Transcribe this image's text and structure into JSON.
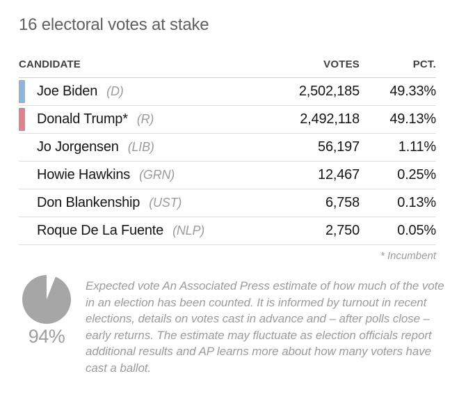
{
  "page": {
    "title": "16 electoral votes at stake"
  },
  "table": {
    "headers": {
      "candidate": "CANDIDATE",
      "votes": "VOTES",
      "pct": "PCT."
    },
    "rows": [
      {
        "name": "Joe Biden",
        "party": "(D)",
        "votes": "2,502,185",
        "pct": "49.33%",
        "marker": "dem"
      },
      {
        "name": "Donald Trump*",
        "party": "(R)",
        "votes": "2,492,118",
        "pct": "49.13%",
        "marker": "rep"
      },
      {
        "name": "Jo Jorgensen",
        "party": "(LIB)",
        "votes": "56,197",
        "pct": "1.11%",
        "marker": "none"
      },
      {
        "name": "Howie Hawkins",
        "party": "(GRN)",
        "votes": "12,467",
        "pct": "0.25%",
        "marker": "none"
      },
      {
        "name": "Don Blankenship",
        "party": "(UST)",
        "votes": "6,758",
        "pct": "0.13%",
        "marker": "none"
      },
      {
        "name": "Roque De La Fuente",
        "party": "(NLP)",
        "votes": "2,750",
        "pct": "0.05%",
        "marker": "none"
      }
    ],
    "footnote": "* Incumbent"
  },
  "expected_vote": {
    "percent": 94,
    "label": "94%",
    "description": "Expected vote An Associated Press estimate of how much of the vote in an election has been counted. It is informed by turnout in recent elections, details on votes cast in advance and – after polls close – early returns. The estimate may fluctuate as election officials report additional results and AP learns more about how many voters have cast a ballot."
  },
  "colors": {
    "dem_marker": "#8FB4D5",
    "rep_marker": "#DB8490",
    "pie_gray": "#A6A6A6",
    "pie_remaining": "#FFFFFF",
    "muted_text": "#9B9B9B",
    "divider": "#DEDEDE",
    "title_text": "#5F5F5F",
    "header_text": "#404040",
    "body_text": "#141414"
  },
  "chart_data": [
    {
      "type": "table",
      "title": "16 electoral votes at stake",
      "columns": [
        "CANDIDATE",
        "VOTES",
        "PCT."
      ],
      "rows": [
        {
          "candidate": "Joe Biden",
          "party": "D",
          "incumbent": false,
          "votes": 2502185,
          "pct": 49.33
        },
        {
          "candidate": "Donald Trump",
          "party": "R",
          "incumbent": true,
          "votes": 2492118,
          "pct": 49.13
        },
        {
          "candidate": "Jo Jorgensen",
          "party": "LIB",
          "incumbent": false,
          "votes": 56197,
          "pct": 1.11
        },
        {
          "candidate": "Howie Hawkins",
          "party": "GRN",
          "incumbent": false,
          "votes": 12467,
          "pct": 0.25
        },
        {
          "candidate": "Don Blankenship",
          "party": "UST",
          "incumbent": false,
          "votes": 6758,
          "pct": 0.13
        },
        {
          "candidate": "Roque De La Fuente",
          "party": "NLP",
          "incumbent": false,
          "votes": 2750,
          "pct": 0.05
        }
      ],
      "footnote": "* Incumbent"
    },
    {
      "type": "pie",
      "title": "Expected vote",
      "labels": [
        "vote counted",
        "vote not yet counted"
      ],
      "values": [
        94,
        6
      ],
      "center_label": "94%",
      "legend_position": "none"
    }
  ]
}
